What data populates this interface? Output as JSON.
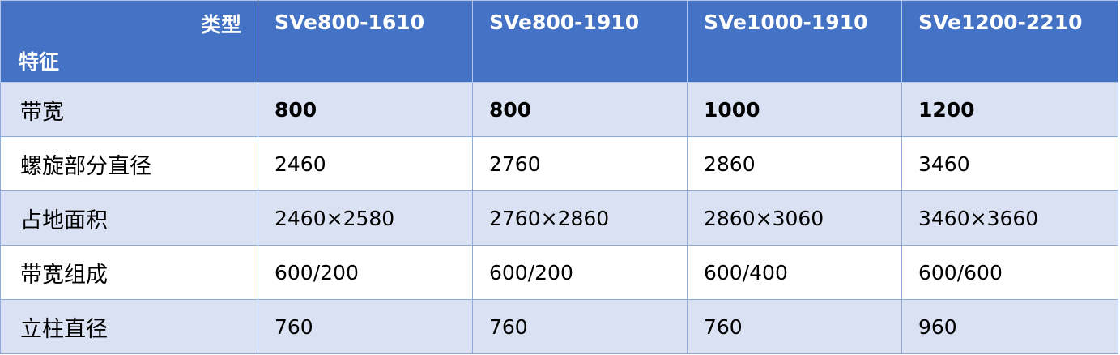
{
  "table": {
    "corner": {
      "top": "类型",
      "bottom": "特征"
    },
    "columns": [
      "SVe800-1610",
      "SVe800-1910",
      "SVe1000-1910",
      "SVe1200-2210"
    ],
    "rows": [
      {
        "label": "带宽",
        "values": [
          "800",
          "800",
          "1000",
          "1200"
        ]
      },
      {
        "label": "螺旋部分直径",
        "values": [
          "2460",
          "2760",
          "2860",
          "3460"
        ]
      },
      {
        "label": "占地面积",
        "values": [
          "2460×2580",
          "2760×2860",
          "2860×3060",
          "3460×3660"
        ]
      },
      {
        "label": "带宽组成",
        "values": [
          "600/200",
          "600/200",
          "600/400",
          "600/600"
        ]
      },
      {
        "label": "立柱直径",
        "values": [
          "760",
          "760",
          "760",
          "960"
        ]
      }
    ]
  }
}
